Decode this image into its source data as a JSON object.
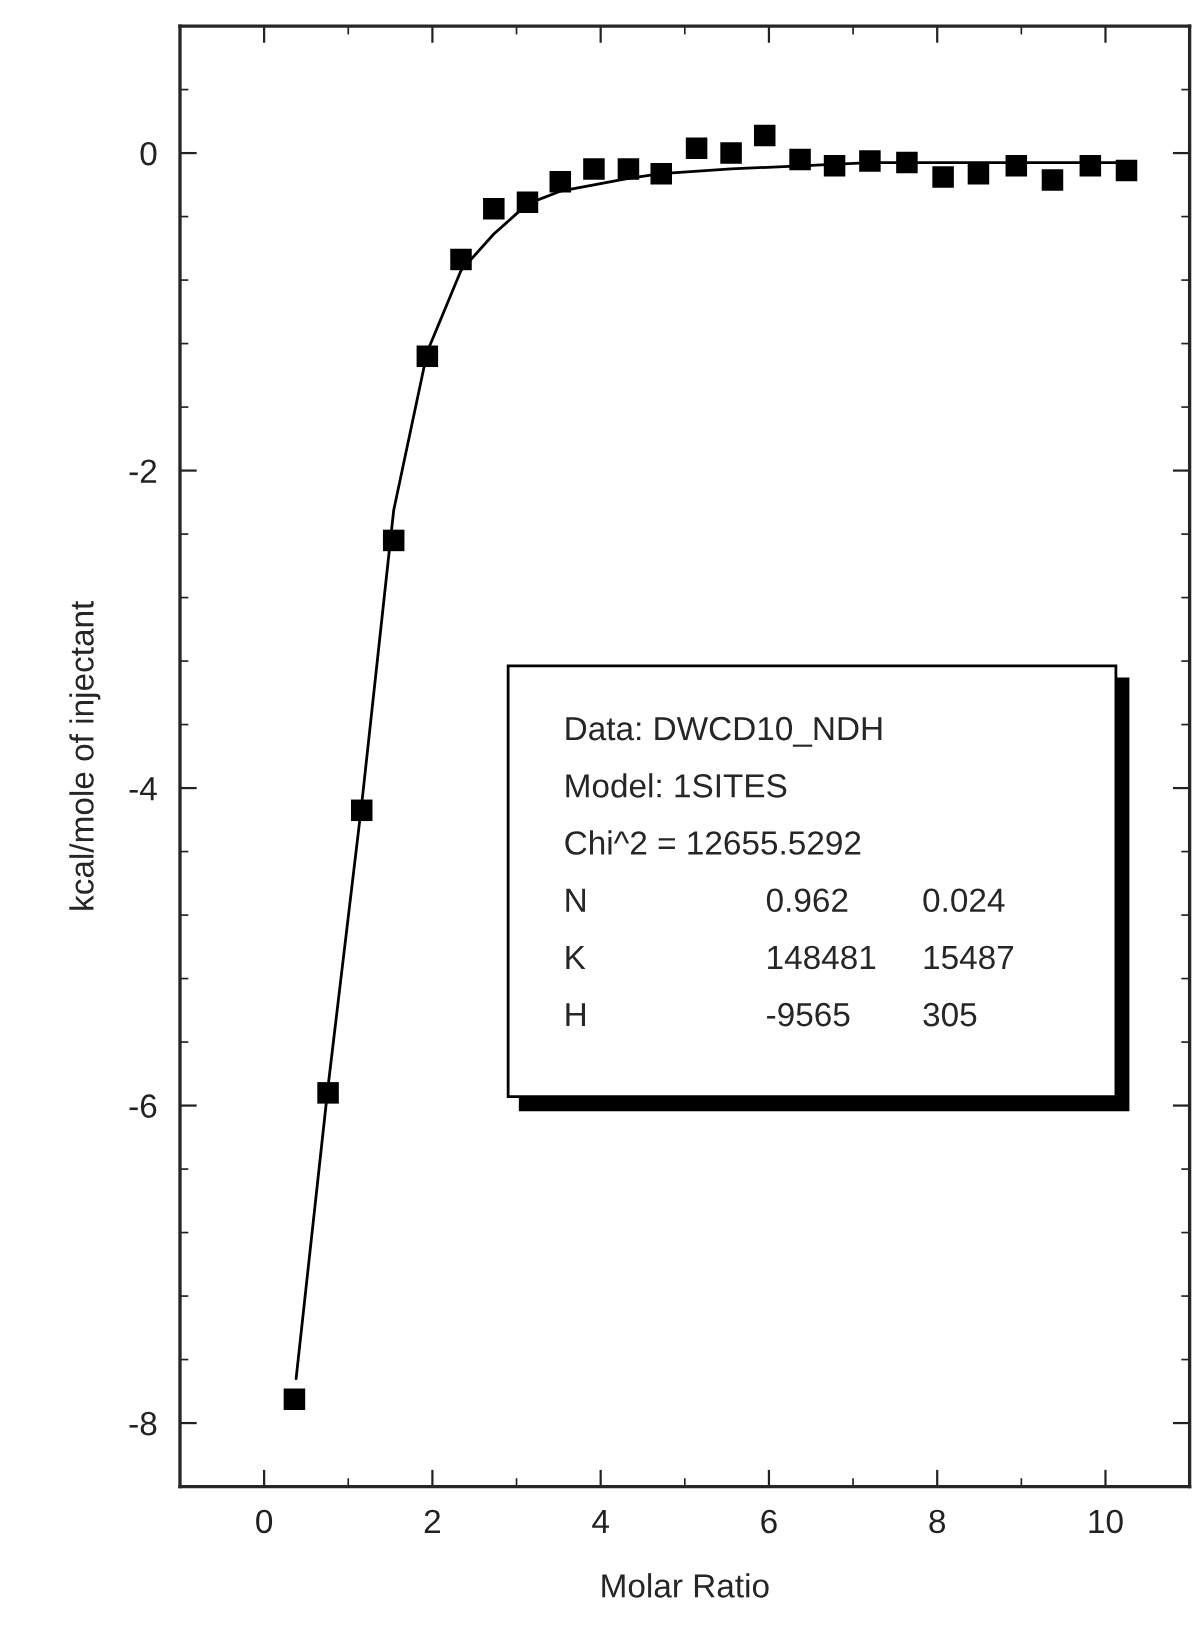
{
  "chart_data": {
    "type": "scatter",
    "xlabel": "Molar Ratio",
    "ylabel": "kcal/mole of injectant",
    "xlim": [
      -1,
      11
    ],
    "xticks": [
      0,
      2,
      4,
      6,
      8,
      10
    ],
    "ylim": [
      -8.4,
      0.8
    ],
    "yticks": [
      -8,
      -6,
      -4,
      -2,
      0
    ],
    "grid": false,
    "legend": false,
    "marker": "square",
    "series": [
      {
        "color": "#000000",
        "x": [
          0.36,
          0.76,
          1.16,
          1.54,
          1.94,
          2.34,
          2.73,
          3.13,
          3.52,
          3.92,
          4.33,
          4.72,
          5.14,
          5.55,
          5.95,
          6.37,
          6.78,
          7.2,
          7.64,
          8.07,
          8.49,
          8.94,
          9.37,
          9.82,
          10.25
        ],
        "values": [
          -7.85,
          -5.92,
          -4.14,
          -2.44,
          -1.28,
          -0.67,
          -0.35,
          -0.31,
          -0.18,
          -0.1,
          -0.1,
          -0.13,
          0.03,
          0.0,
          0.11,
          -0.04,
          -0.08,
          -0.05,
          -0.06,
          -0.15,
          -0.13,
          -0.08,
          -0.17,
          -0.08,
          -0.11
        ]
      },
      {
        "type": "line",
        "color": "#000000",
        "marker": "none",
        "line_style": "solid",
        "x": [
          0.38,
          0.76,
          1.16,
          1.54,
          1.94,
          2.34,
          2.73,
          3.13,
          3.52,
          3.92,
          4.33,
          4.72,
          5.55,
          6.37,
          7.2,
          8.49,
          10.25
        ],
        "values": [
          -7.72,
          -5.88,
          -4.1,
          -2.25,
          -1.25,
          -0.74,
          -0.51,
          -0.32,
          -0.24,
          -0.2,
          -0.16,
          -0.13,
          -0.1,
          -0.08,
          -0.06,
          -0.06,
          -0.06
        ]
      }
    ],
    "annotations": [
      "Data: DWCD10_NDH",
      "Model: 1SITES",
      "Chi^2 = 12655.5292",
      "N\t0.962\t0.024",
      "K\t148481\t15487",
      "H\t-9565\t305"
    ]
  }
}
